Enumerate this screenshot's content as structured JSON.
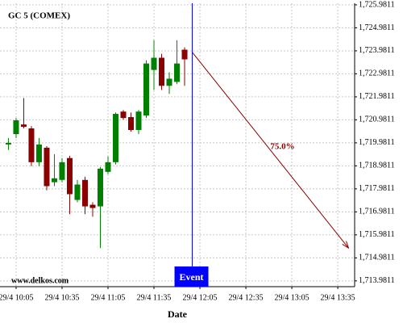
{
  "chart_data": {
    "type": "candlestick",
    "title": "GC 5 (COMEX)",
    "watermark": "www.delkos.com",
    "x_label": "Date",
    "x": [
      600,
      605,
      610,
      615,
      620,
      625,
      630,
      635,
      640,
      645,
      650,
      655,
      660,
      665,
      670,
      675,
      680,
      685,
      690,
      695,
      700,
      705,
      710,
      715
    ],
    "open": [
      1719.91,
      1720.36,
      1720.78,
      1720.61,
      1719.14,
      1719.77,
      1718.27,
      1718.37,
      1719.32,
      1717.5,
      1718.37,
      1717.29,
      1717.22,
      1718.72,
      1719.14,
      1721.34,
      1721.1,
      1720.54,
      1721.17,
      1723.15,
      1723.68,
      1722.46,
      1722.63,
      1724.03
    ],
    "high": [
      1720.19,
      1721.06,
      1721.93,
      1720.71,
      1720.19,
      1719.84,
      1719.49,
      1719.32,
      1719.42,
      1718.37,
      1718.51,
      1717.4,
      1718.93,
      1719.39,
      1721.3,
      1721.41,
      1721.3,
      1721.41,
      1723.57,
      1724.44,
      1723.85,
      1723.05,
      1724.44,
      1724.13
    ],
    "low": [
      1719.67,
      1720.19,
      1720.61,
      1718.97,
      1718.97,
      1717.92,
      1718.1,
      1718.27,
      1716.88,
      1717.4,
      1716.88,
      1716.77,
      1715.41,
      1718.62,
      1719.04,
      1720.99,
      1720.47,
      1720.36,
      1721.06,
      1722.28,
      1722.28,
      1722.11,
      1722.53,
      1722.46
    ],
    "close": [
      1719.98,
      1720.96,
      1720.68,
      1719.14,
      1719.91,
      1718.1,
      1718.44,
      1719.14,
      1717.75,
      1718.17,
      1717.22,
      1717.15,
      1718.86,
      1719.14,
      1721.24,
      1721.06,
      1720.54,
      1721.34,
      1723.43,
      1723.68,
      1722.46,
      1722.77,
      1723.43,
      1723.61
    ],
    "up_color": "#008000",
    "down_color": "#8b0000",
    "xlim": [
      594.5,
      826
    ],
    "xticks": [
      {
        "value": 605,
        "label": "29/4 10:05"
      },
      {
        "value": 635,
        "label": "29/4 10:35"
      },
      {
        "value": 665,
        "label": "29/4 11:05"
      },
      {
        "value": 695,
        "label": "29/4 11:35"
      },
      {
        "value": 725,
        "label": "29/4 12:05"
      },
      {
        "value": 755,
        "label": "29/4 12:35"
      },
      {
        "value": 785,
        "label": "29/4 13:05"
      },
      {
        "value": 815,
        "label": "29/4 13:35"
      }
    ],
    "ylim": [
      1713.73,
      1726.05
    ],
    "yticks": [
      {
        "value": 1713.9811,
        "label": "1,713.9811"
      },
      {
        "value": 1714.9811,
        "label": "1,714.9811"
      },
      {
        "value": 1715.9811,
        "label": "1,715.9811"
      },
      {
        "value": 1716.9811,
        "label": "1,716.9811"
      },
      {
        "value": 1717.9811,
        "label": "1,717.9811"
      },
      {
        "value": 1718.9811,
        "label": "1,718.9811"
      },
      {
        "value": 1719.9811,
        "label": "1,719.9811"
      },
      {
        "value": 1720.9811,
        "label": "1,720.9811"
      },
      {
        "value": 1721.9811,
        "label": "1,721.9811"
      },
      {
        "value": 1722.9811,
        "label": "1,722.9811"
      },
      {
        "value": 1723.9811,
        "label": "1,723.9811"
      },
      {
        "value": 1724.9811,
        "label": "1,724.9811"
      },
      {
        "value": 1725.9811,
        "label": "1,725.9811"
      }
    ],
    "grid": true,
    "event": {
      "x": 720,
      "label": "Event",
      "color": "#0000ff"
    },
    "arrow": {
      "text": "75.0%",
      "x": [
        720,
        822
      ],
      "y": [
        1723.92,
        1715.41
      ],
      "color": "#8b0000"
    }
  }
}
